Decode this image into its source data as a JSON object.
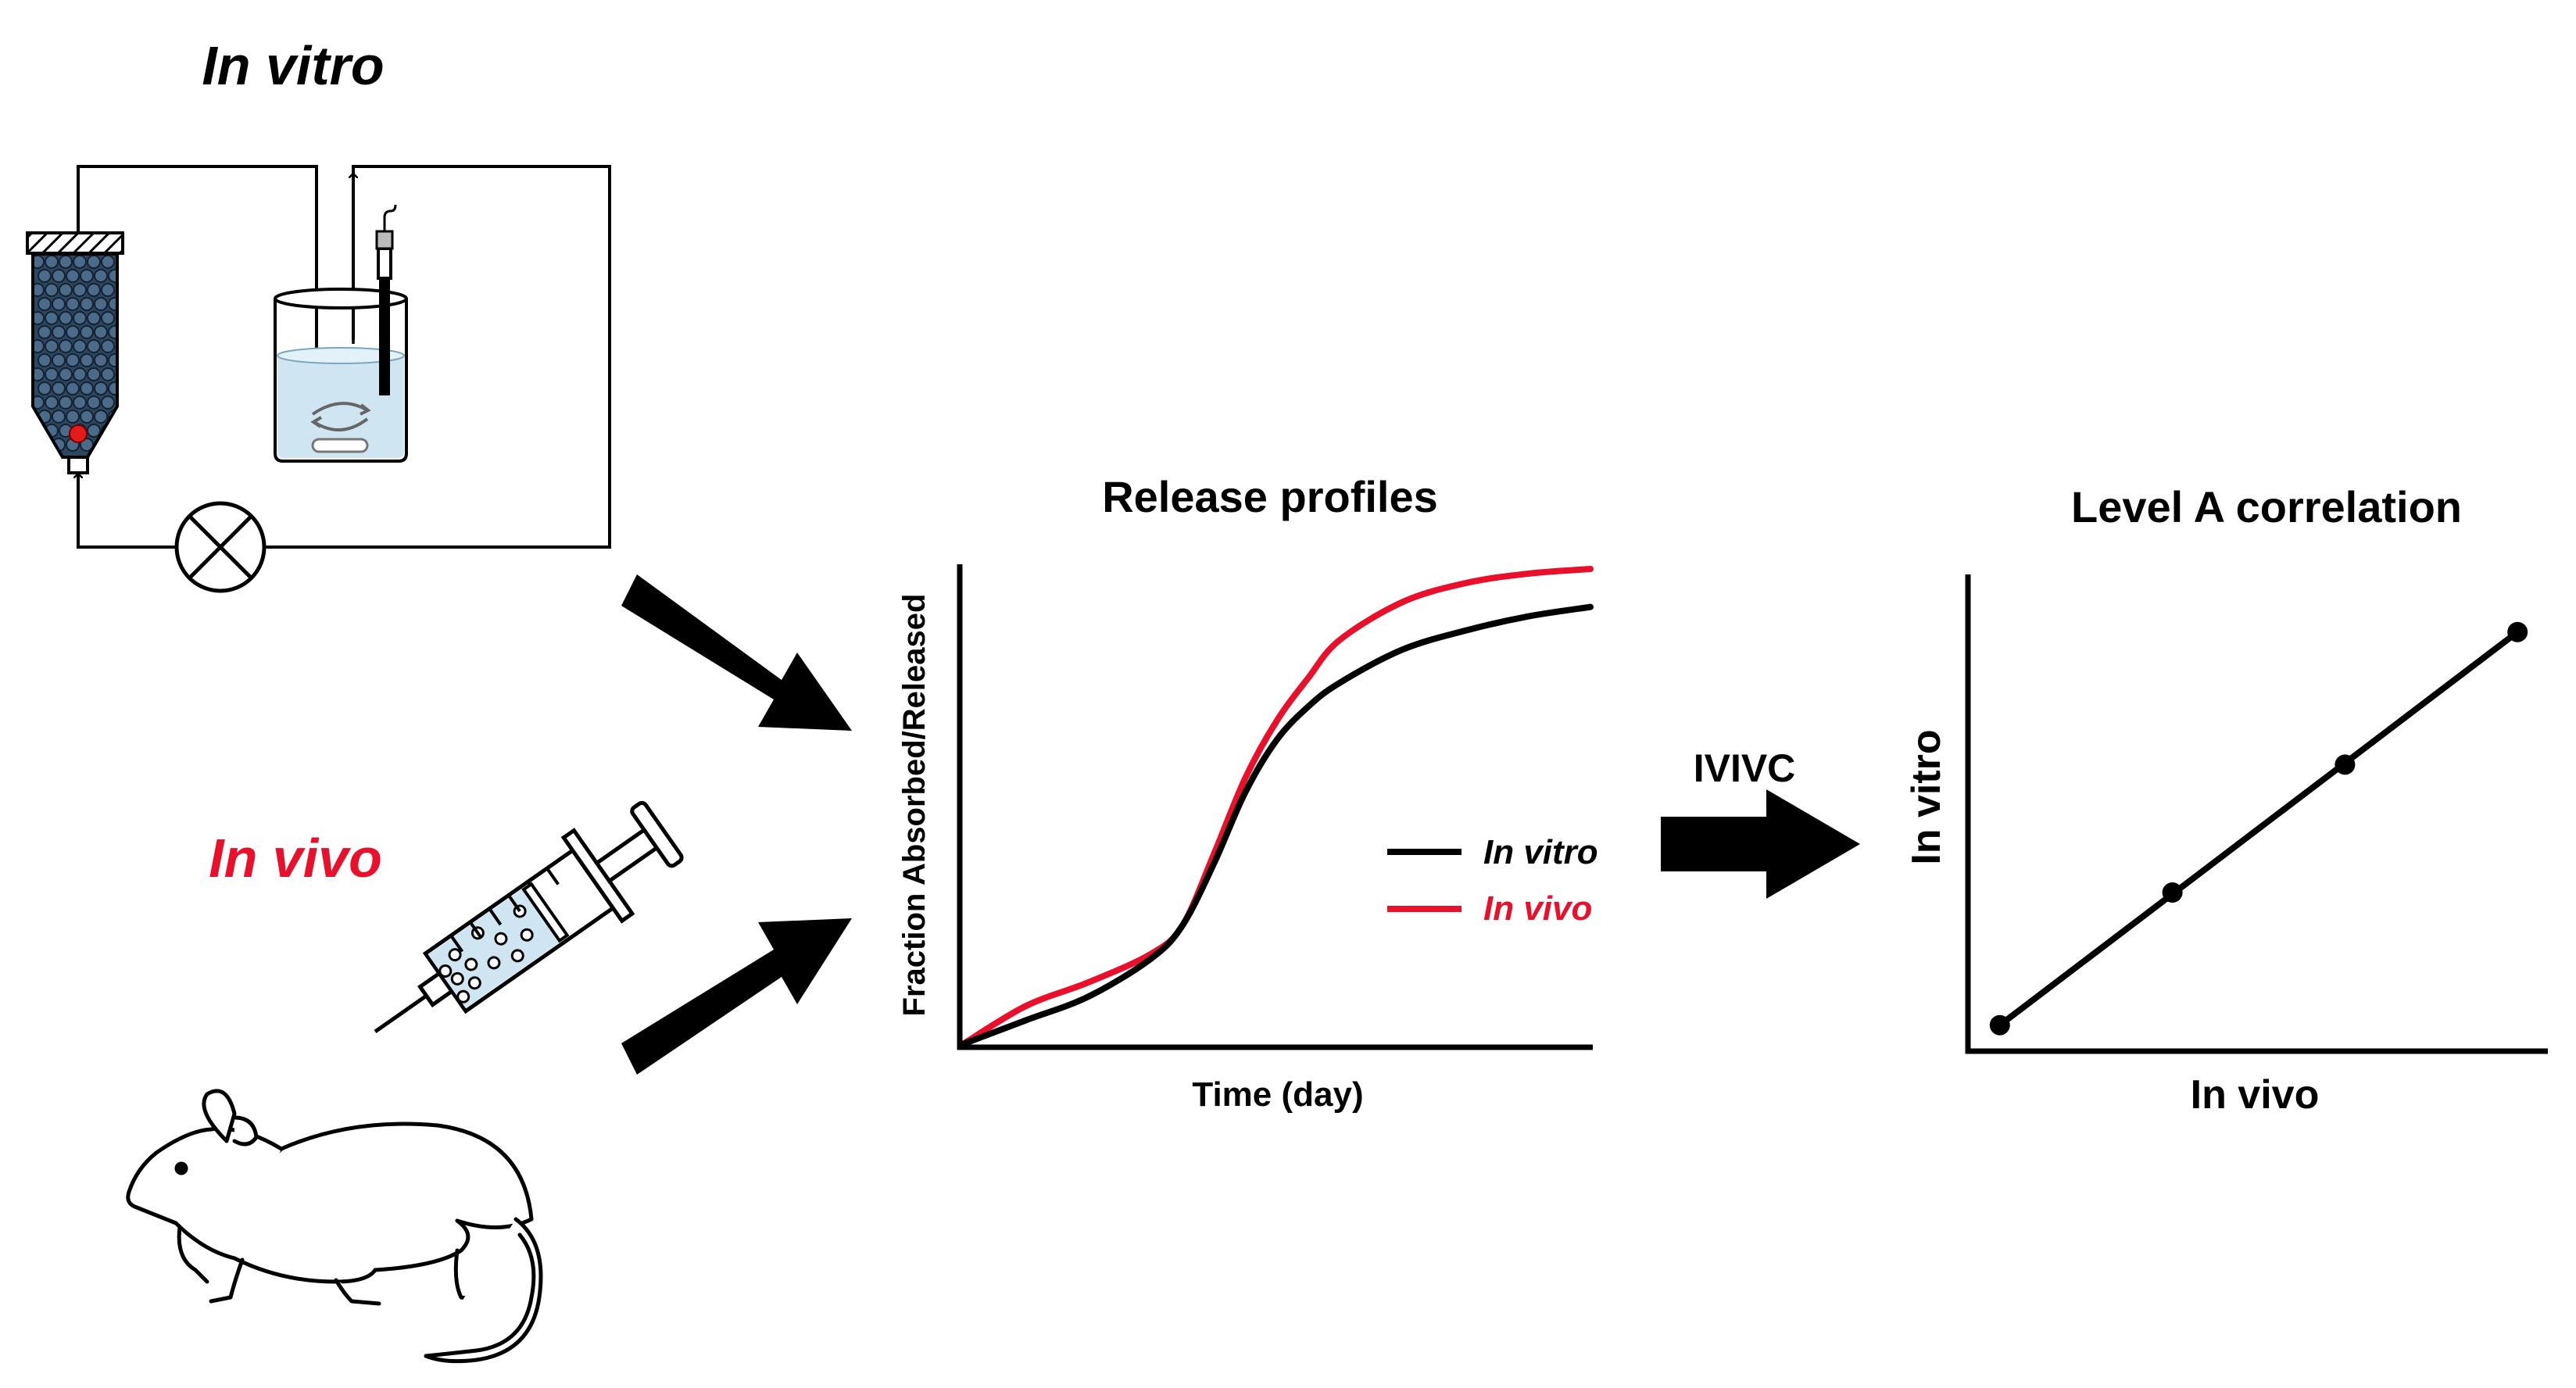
{
  "in_vitro_label": "In vitro",
  "in_vivo_label": "In vivo",
  "ivivc_label": "IVIVC",
  "colors": {
    "black": "#000000",
    "red": "#e8102a",
    "water": "#cfe6f2",
    "bead": "#3f5d78",
    "bead_dark": "#1d2e40"
  },
  "icons": [
    "flow-through-column-icon",
    "beaker-icon",
    "pump-icon",
    "syringe-icon",
    "mouse-icon",
    "arrow-icon"
  ],
  "release_profiles": {
    "title": "Release profiles",
    "xlabel": "Time (day)",
    "ylabel": "Fraction Absorbed/Released",
    "legend": [
      "In vitro",
      "In vivo"
    ]
  },
  "correlation": {
    "title": "Level A correlation",
    "xlabel": "In vivo",
    "ylabel": "In vitro"
  },
  "chart_data": [
    {
      "type": "line",
      "title": "Release profiles",
      "xlabel": "Time (day)",
      "ylabel": "Fraction Absorbed/Released",
      "legend_position": "right",
      "grid": false,
      "xlim": [
        0,
        1
      ],
      "ylim": [
        0,
        1
      ],
      "series": [
        {
          "name": "In vitro",
          "color": "#000000",
          "x": [
            0,
            0.1,
            0.2,
            0.3,
            0.35,
            0.4,
            0.45,
            0.5,
            0.55,
            0.6,
            0.7,
            0.8,
            0.9,
            1.0
          ],
          "y": [
            0,
            0.05,
            0.1,
            0.18,
            0.25,
            0.38,
            0.53,
            0.64,
            0.71,
            0.76,
            0.83,
            0.87,
            0.9,
            0.92
          ]
        },
        {
          "name": "In vivo",
          "color": "#e8102a",
          "x": [
            0,
            0.1,
            0.2,
            0.3,
            0.35,
            0.4,
            0.45,
            0.5,
            0.55,
            0.6,
            0.7,
            0.8,
            0.9,
            1.0
          ],
          "y": [
            0,
            0.08,
            0.13,
            0.19,
            0.25,
            0.4,
            0.56,
            0.68,
            0.77,
            0.85,
            0.93,
            0.97,
            0.99,
            1.0
          ]
        }
      ]
    },
    {
      "type": "scatter",
      "title": "Level A correlation",
      "xlabel": "In vivo",
      "ylabel": "In vitro",
      "grid": false,
      "xlim": [
        0,
        1
      ],
      "ylim": [
        0,
        1
      ],
      "trendline": true,
      "x": [
        0.05,
        0.35,
        0.65,
        0.95
      ],
      "y": [
        0.05,
        0.33,
        0.6,
        0.88
      ]
    }
  ]
}
